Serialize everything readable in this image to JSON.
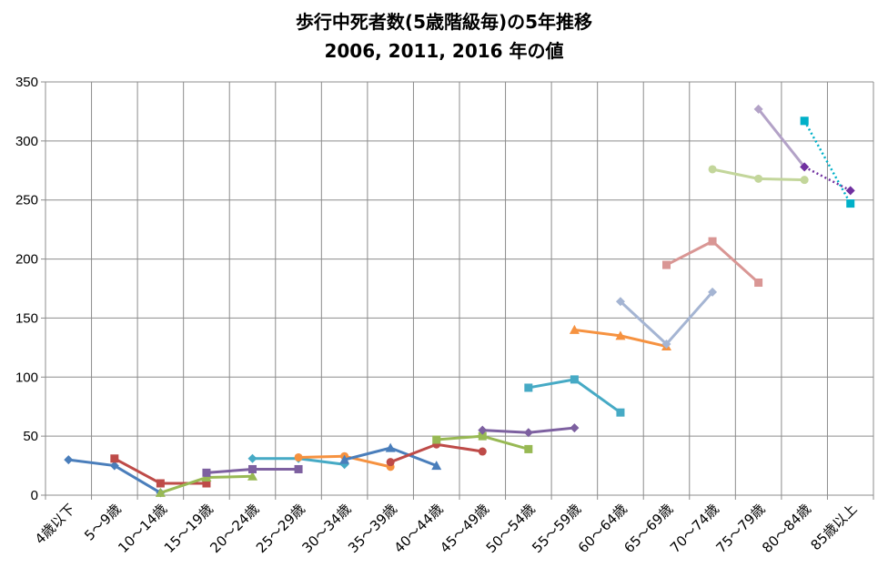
{
  "chart_data": {
    "type": "line",
    "title": "歩行中死者数(5歳階級毎)の5年推移",
    "subtitle": "2006, 2011, 2016 年の値",
    "xlabel": "",
    "ylabel": "",
    "ylim": [
      0,
      350
    ],
    "yticks": [
      "0",
      "50",
      "100",
      "150",
      "200",
      "250",
      "300",
      "350"
    ],
    "grid": true,
    "legend": "none",
    "categories": [
      "4歳以下",
      "5～9歳",
      "10～14歳",
      "15～19歳",
      "20～24歳",
      "25～29歳",
      "30～34歳",
      "35～39歳",
      "40～44歳",
      "45～49歳",
      "50～54歳",
      "55～59歳",
      "60～64歳",
      "65～69歳",
      "70～74歳",
      "75～79歳",
      "80～84歳",
      "85歳以上"
    ],
    "series": [
      {
        "color": "#4a7ebb",
        "marker": "diamond",
        "points": [
          [
            0,
            30
          ],
          [
            1,
            25
          ],
          [
            2,
            2
          ]
        ]
      },
      {
        "color": "#be4b48",
        "marker": "square",
        "points": [
          [
            1,
            31
          ],
          [
            2,
            10
          ],
          [
            3,
            10
          ]
        ]
      },
      {
        "color": "#98b954",
        "marker": "triangle",
        "points": [
          [
            2,
            2
          ],
          [
            3,
            15
          ],
          [
            4,
            16
          ]
        ]
      },
      {
        "color": "#7d60a0",
        "marker": "square",
        "points": [
          [
            3,
            19
          ],
          [
            4,
            22
          ],
          [
            5,
            22
          ]
        ]
      },
      {
        "color": "#46aac5",
        "marker": "diamond",
        "points": [
          [
            4,
            31
          ],
          [
            5,
            31
          ],
          [
            6,
            26
          ]
        ]
      },
      {
        "color": "#f69240",
        "marker": "circle",
        "points": [
          [
            5,
            32
          ],
          [
            6,
            33
          ],
          [
            7,
            24
          ]
        ]
      },
      {
        "color": "#4a7ebb",
        "marker": "triangle",
        "points": [
          [
            6,
            30
          ],
          [
            7,
            40
          ],
          [
            8,
            25
          ]
        ]
      },
      {
        "color": "#be4b48",
        "marker": "circle",
        "points": [
          [
            7,
            28
          ],
          [
            8,
            43
          ],
          [
            9,
            37
          ]
        ]
      },
      {
        "color": "#98b954",
        "marker": "square",
        "points": [
          [
            8,
            47
          ],
          [
            9,
            50
          ],
          [
            10,
            39
          ]
        ]
      },
      {
        "color": "#7d60a0",
        "marker": "diamond",
        "points": [
          [
            9,
            55
          ],
          [
            10,
            53
          ],
          [
            11,
            57
          ]
        ]
      },
      {
        "color": "#46aac5",
        "marker": "square",
        "points": [
          [
            10,
            91
          ],
          [
            11,
            98
          ],
          [
            12,
            70
          ]
        ]
      },
      {
        "color": "#f69240",
        "marker": "triangle",
        "points": [
          [
            11,
            140
          ],
          [
            12,
            135
          ],
          [
            13,
            126
          ]
        ]
      },
      {
        "color": "#a5b5d3",
        "marker": "diamond",
        "points": [
          [
            12,
            164
          ],
          [
            13,
            128
          ],
          [
            14,
            172
          ]
        ]
      },
      {
        "color": "#d99694",
        "marker": "square",
        "points": [
          [
            13,
            195
          ],
          [
            14,
            215
          ],
          [
            15,
            180
          ]
        ]
      },
      {
        "color": "#c3d69b",
        "marker": "circle",
        "points": [
          [
            14,
            276
          ],
          [
            15,
            268
          ],
          [
            16,
            267
          ]
        ]
      },
      {
        "color": "#b3a2c7",
        "marker": "diamond",
        "points": [
          [
            15,
            327
          ],
          [
            16,
            278
          ]
        ]
      },
      {
        "color": "#7030a0",
        "marker": "diamond",
        "dashed": true,
        "points": [
          [
            16,
            278
          ],
          [
            17,
            258
          ]
        ]
      },
      {
        "color": "#93cddd",
        "marker": "square",
        "points": [
          [
            16,
            317
          ]
        ]
      },
      {
        "color": "#00b0c8",
        "marker": "square",
        "dashed": true,
        "points": [
          [
            16,
            317
          ],
          [
            17,
            247
          ]
        ]
      }
    ]
  }
}
